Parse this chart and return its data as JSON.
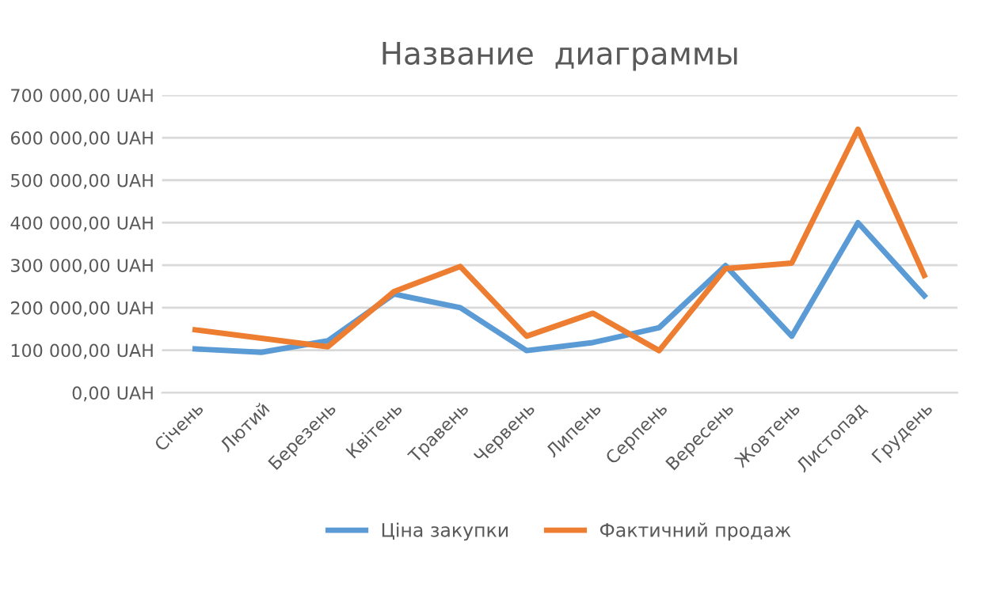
{
  "chart_data": {
    "type": "line",
    "title": "Название  диаграммы",
    "categories": [
      "Січень",
      "Лютий",
      "Березень",
      "Квітень",
      "Травень",
      "Червень",
      "Липень",
      "Серпень",
      "Вересень",
      "Жовтень",
      "Листопад",
      "Грудень"
    ],
    "series": [
      {
        "name": "Ціна закупки",
        "color": "#5b9bd5",
        "values": [
          103000,
          95000,
          122000,
          232000,
          200000,
          99000,
          118000,
          153000,
          299000,
          133000,
          400000,
          228000
        ]
      },
      {
        "name": "Фактичний продаж",
        "color": "#ed7d31",
        "values": [
          148000,
          128000,
          108000,
          238000,
          297000,
          133000,
          187000,
          99000,
          292000,
          305000,
          620000,
          276000
        ]
      }
    ],
    "ylim": [
      0,
      700000
    ],
    "yticks": [
      {
        "value": 0,
        "label": "0,00 UAH"
      },
      {
        "value": 100000,
        "label": "100 000,00 UAH"
      },
      {
        "value": 200000,
        "label": "200 000,00 UAH"
      },
      {
        "value": 300000,
        "label": "300 000,00 UAH"
      },
      {
        "value": 400000,
        "label": "400 000,00 UAH"
      },
      {
        "value": 500000,
        "label": "500 000,00 UAH"
      },
      {
        "value": 600000,
        "label": "600 000,00 UAH"
      },
      {
        "value": 700000,
        "label": "700 000,00 UAH"
      }
    ],
    "grid": "y",
    "legend": "bottom",
    "marker": "none",
    "line_style": "solid"
  }
}
